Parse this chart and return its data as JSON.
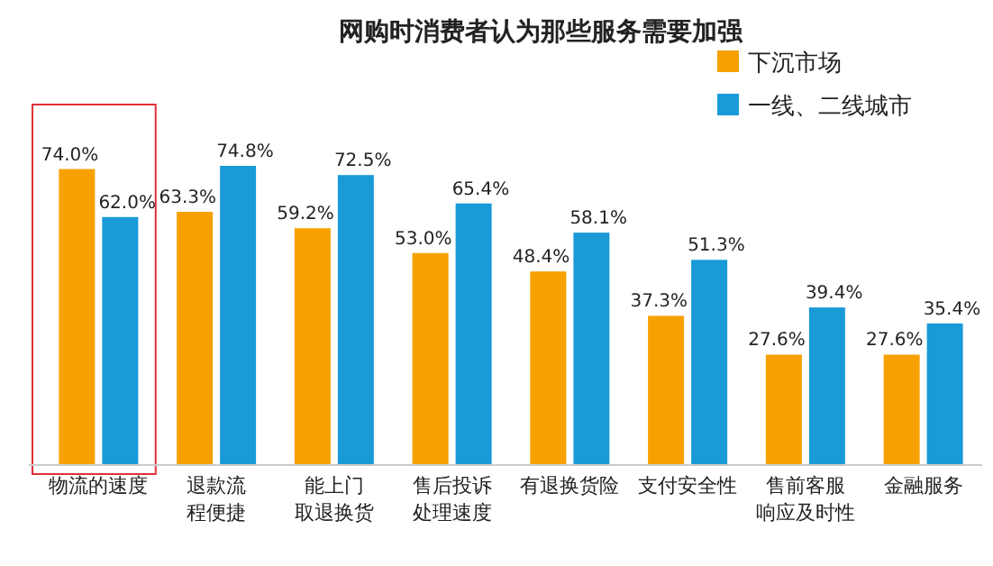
{
  "chart_data": {
    "type": "bar",
    "title": "网购时消费者认为那些服务需要加强",
    "categories": [
      "物流的速度",
      "退款流程便捷",
      "能上门取退换货",
      "售后投诉处理速度",
      "有退换货险",
      "支付安全性",
      "售前客服响应及时性",
      "金融服务"
    ],
    "series": [
      {
        "name": "下沉市场",
        "color": "#f7a100",
        "values": [
          74.0,
          63.3,
          59.2,
          53.0,
          48.4,
          37.3,
          27.6,
          27.6
        ],
        "value_labels": [
          "74.0%",
          "63.3%",
          "59.2%",
          "53.0%",
          "48.4%",
          "37.3%",
          "27.6%",
          "27.6%"
        ]
      },
      {
        "name": "一线、二线城市",
        "color": "#1a9ad7",
        "values": [
          62.0,
          74.8,
          72.5,
          65.4,
          58.1,
          51.3,
          39.4,
          35.4
        ],
        "value_labels": [
          "62.0%",
          "74.8%",
          "72.5%",
          "65.4%",
          "58.1%",
          "51.3%",
          "39.4%",
          "35.4%"
        ]
      }
    ],
    "legend": "top right"
  }
}
